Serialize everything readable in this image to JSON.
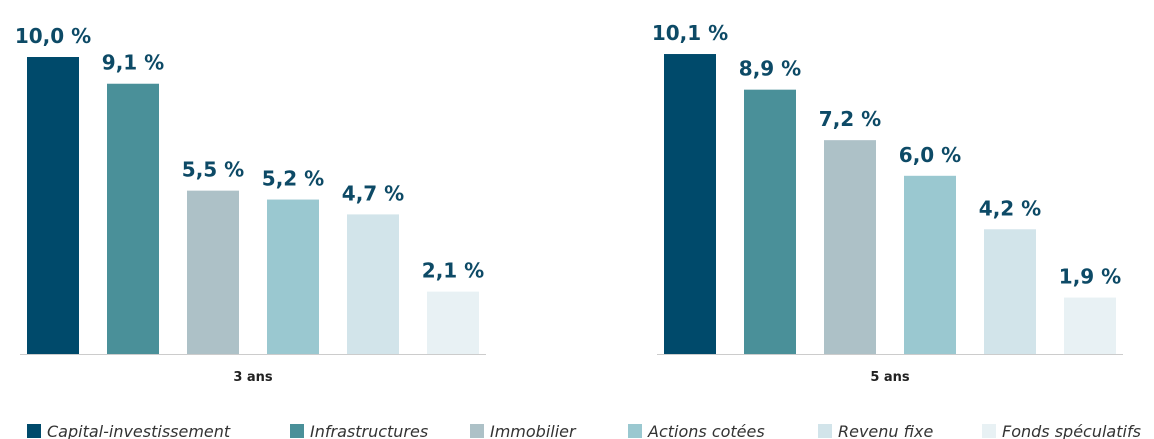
{
  "chart_data": [
    {
      "type": "bar",
      "xlabel": "3 ans",
      "values": [
        10.0,
        9.1,
        5.5,
        5.2,
        4.7,
        2.1
      ],
      "value_labels": [
        "10,0 %",
        "9,1 %",
        "5,5 %",
        "5,2 %",
        "4,7 %",
        "2,1 %"
      ]
    },
    {
      "type": "bar",
      "xlabel": "5 ans",
      "values": [
        10.1,
        8.9,
        7.2,
        6.0,
        4.2,
        1.9
      ],
      "value_labels": [
        "10,1 %",
        "8,9 %",
        "7,2 %",
        "6,0 %",
        "4,2 %",
        "1,9 %"
      ]
    }
  ],
  "legend": [
    {
      "name": "Capital-investissement",
      "color": "#004a6b"
    },
    {
      "name": "Infrastructures",
      "color": "#4a9099"
    },
    {
      "name": "Immobilier",
      "color": "#adc1c7"
    },
    {
      "name": "Actions cotées",
      "color": "#9ac8d0"
    },
    {
      "name": "Revenu fixe",
      "color": "#d2e4ea"
    },
    {
      "name": "Fonds spéculatifs",
      "color": "#e8f1f4"
    }
  ]
}
